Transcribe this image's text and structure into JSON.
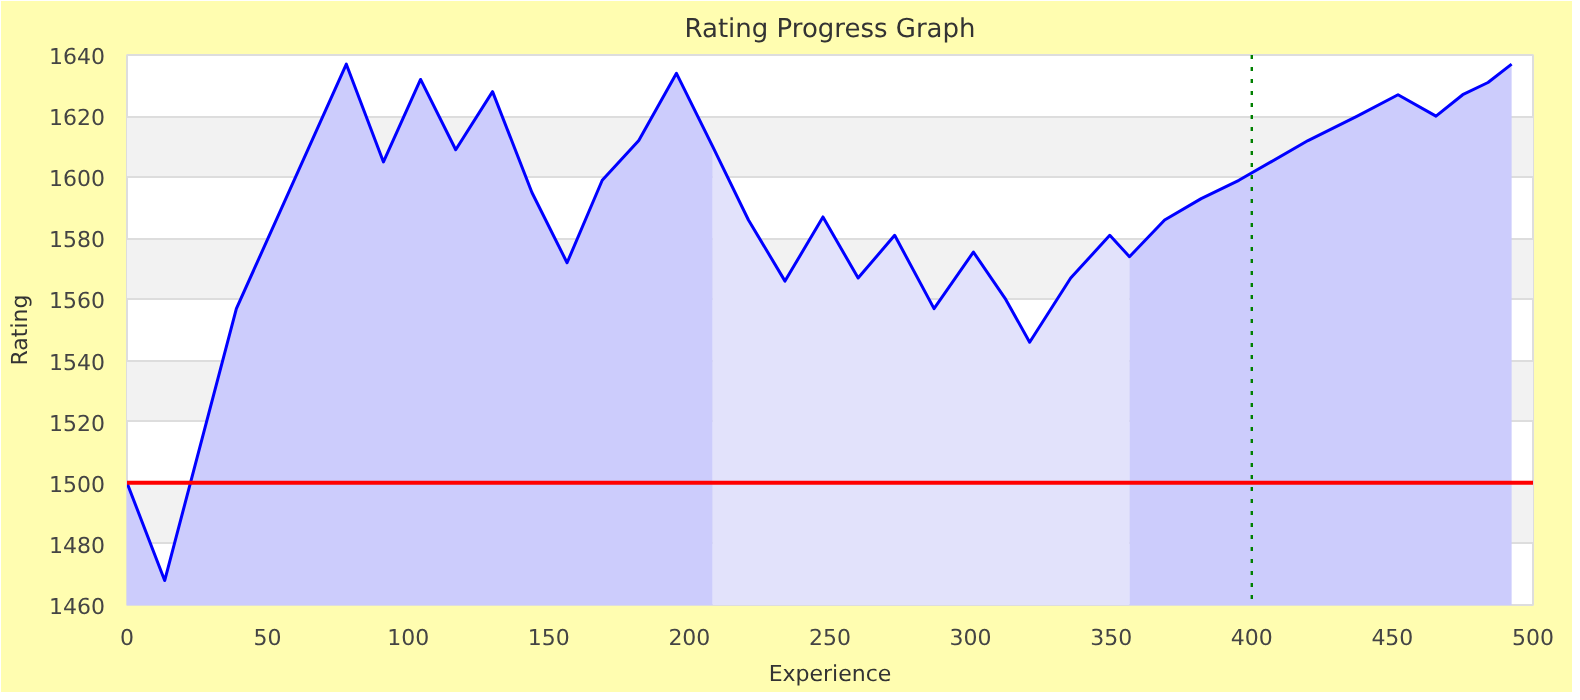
{
  "chart_data": {
    "type": "area",
    "title": "Rating Progress Graph",
    "xlabel": "Experience",
    "ylabel": "Rating",
    "series": [
      {
        "color": "#ccccfc",
        "x": [
          0,
          13.4,
          38.9,
          78,
          91.2,
          104.4,
          116.9,
          130,
          144,
          156.5,
          169,
          182,
          195.4,
          208.3
        ],
        "values": [
          1500,
          1468,
          1557,
          1637,
          1605,
          1632,
          1609,
          1628,
          1595,
          1572,
          1599,
          1612,
          1634,
          1610
        ]
      },
      {
        "color": "#e2e2fb",
        "x": [
          208.3,
          221,
          234,
          247.5,
          260,
          273,
          287,
          301,
          312.5,
          321,
          335.6,
          349.5,
          356.5
        ],
        "values": [
          1610,
          1586,
          1566,
          1587,
          1567,
          1581,
          1557,
          1575.5,
          1560,
          1546,
          1567,
          1581,
          1574
        ]
      },
      {
        "color": "#ccccfc",
        "x": [
          356.5,
          369,
          382,
          395.4,
          420,
          437.5,
          452,
          465.5,
          475,
          484,
          492.4
        ],
        "values": [
          1574,
          1586,
          1593,
          1599,
          1612,
          1620,
          1627,
          1620,
          1627,
          1631,
          1637
        ]
      },
      {
        "type": "line",
        "color": "#0000ff",
        "x": [
          0,
          13.4,
          38.9,
          78,
          91.2,
          104.4,
          116.9,
          130,
          144,
          156.5,
          169,
          182,
          195.4,
          208.3,
          221,
          234,
          247.5,
          260,
          273,
          287,
          301,
          312.5,
          321,
          335.6,
          349.5,
          356.5,
          369,
          382,
          395.4,
          420,
          437.5,
          452,
          465.5,
          475,
          484,
          492.4
        ],
        "values": [
          1500,
          1468,
          1557,
          1637,
          1605,
          1632,
          1609,
          1628,
          1595,
          1572,
          1599,
          1612,
          1634,
          1610,
          1586,
          1566,
          1587,
          1567,
          1581,
          1557,
          1575.5,
          1560,
          1546,
          1567,
          1581,
          1574,
          1586,
          1593,
          1599,
          1612,
          1620,
          1627,
          1620,
          1627,
          1631,
          1637
        ]
      }
    ],
    "xlim": [
      0,
      500
    ],
    "xticks": [
      0,
      50,
      100,
      150,
      200,
      250,
      300,
      350,
      400,
      450,
      500
    ],
    "ylim": [
      1460,
      1640
    ],
    "yticks": [
      1460,
      1480,
      1500,
      1520,
      1540,
      1560,
      1580,
      1600,
      1620,
      1640
    ],
    "ref_lines": [
      {
        "axis": "y",
        "value": 1500,
        "label": null,
        "color": "#ff0000",
        "line_style": "solid"
      },
      {
        "axis": "x",
        "value": 400,
        "label": null,
        "color": "#008000",
        "line_style": "dotted"
      }
    ],
    "grid": "y",
    "marker": "none",
    "line_style": "solid"
  }
}
